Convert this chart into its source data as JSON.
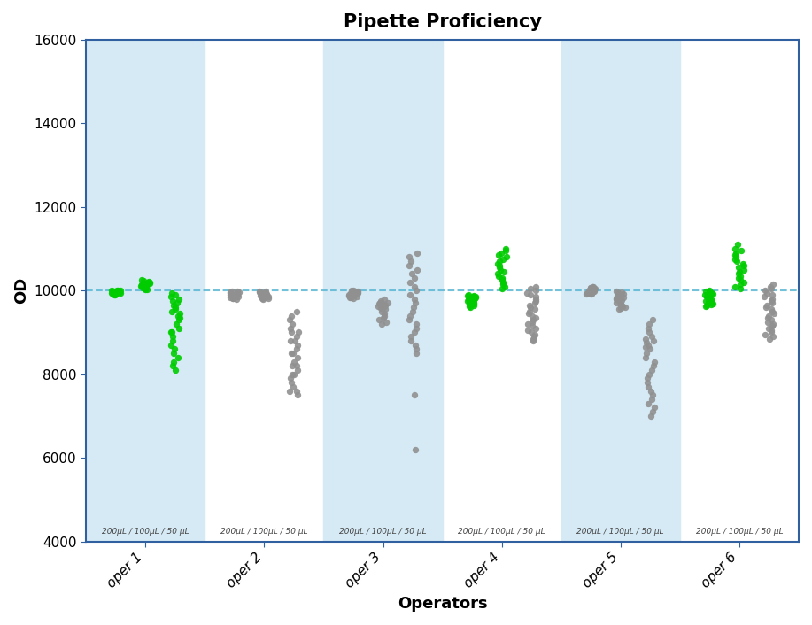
{
  "title": "Pipette Proficiency",
  "xlabel": "Operators",
  "ylabel": "OD",
  "ylim": [
    4000,
    16000
  ],
  "yticks": [
    4000,
    6000,
    8000,
    10000,
    12000,
    14000,
    16000
  ],
  "dashed_line_y": 10000,
  "operators": [
    "oper 1",
    "oper 2",
    "oper 3",
    "oper 4",
    "oper 5",
    "oper 6"
  ],
  "sublabel": "200μL / 100μL / 50 μL",
  "background_color": "#ffffff",
  "band_color": "#d6eaf5",
  "green_color": "#00cc00",
  "gray_color": "#909090",
  "dashed_color": "#5bb8d4",
  "title_fontsize": 15,
  "axis_label_fontsize": 13,
  "tick_fontsize": 11,
  "spine_color": "#3060a0",
  "operator_data": {
    "oper 1": {
      "col1_color": "green",
      "col2_color": "green",
      "col3_color": "green",
      "col1": [
        9990,
        9995,
        10000,
        10005,
        9985,
        9975,
        10010,
        9970,
        9980,
        9960,
        9950,
        9940,
        9965,
        9955,
        9945,
        9935,
        9925,
        9915,
        9905,
        9895
      ],
      "col2": [
        10100,
        10120,
        10080,
        10050,
        10150,
        10200,
        10060,
        10170,
        10090,
        10110,
        10130,
        10140,
        10160,
        10180,
        10190,
        10210,
        10230,
        10250,
        10020,
        10030
      ],
      "col3": [
        9950,
        9900,
        9850,
        9800,
        9750,
        9700,
        9650,
        9600,
        9550,
        9500,
        9450,
        9400,
        9350,
        9300,
        9200,
        9100,
        9000,
        8900,
        8700,
        8500,
        8600,
        8800,
        8400,
        8300,
        8200,
        8100,
        9000
      ]
    },
    "oper 2": {
      "col1_color": "gray",
      "col2_color": "gray",
      "col3_color": "gray",
      "col1": [
        9950,
        9960,
        9970,
        9980,
        9990,
        9940,
        9930,
        9920,
        9910,
        9900,
        9890,
        9880,
        9870,
        9860,
        9850,
        9840,
        9830,
        9820,
        9810,
        9800
      ],
      "col2": [
        9850,
        9860,
        9870,
        9880,
        9890,
        9900,
        9910,
        9920,
        9930,
        9940,
        9950,
        9960,
        9970,
        9980,
        9990,
        9840,
        9830,
        9820,
        9810,
        9800
      ],
      "col3": [
        9500,
        9400,
        9300,
        9200,
        9100,
        9000,
        8900,
        8800,
        8700,
        8600,
        8500,
        8400,
        8300,
        8200,
        8100,
        8000,
        7900,
        7800,
        7700,
        7600,
        7500,
        7600,
        8000,
        8500,
        9000,
        8800,
        8200
      ]
    },
    "oper 3": {
      "col1_color": "gray",
      "col2_color": "gray",
      "col3_color": "gray",
      "col1": [
        9990,
        10000,
        10010,
        9980,
        9970,
        9960,
        9950,
        9940,
        9930,
        9920,
        9910,
        9900,
        9890,
        9880,
        9870,
        9860,
        9850,
        9840,
        9830,
        9820
      ],
      "col2": [
        9700,
        9750,
        9800,
        9650,
        9600,
        9550,
        9500,
        9450,
        9400,
        9350,
        9300,
        9250,
        9200,
        9700,
        9680,
        9660,
        9640,
        9620,
        9600,
        9580
      ],
      "col3": [
        10100,
        10200,
        10300,
        10400,
        10500,
        10600,
        10700,
        10800,
        10900,
        10000,
        9900,
        9800,
        9700,
        9600,
        9500,
        9400,
        9300,
        9200,
        9100,
        9000,
        8900,
        8800,
        8700,
        8600,
        8500,
        6200,
        7500
      ]
    },
    "oper 4": {
      "col1_color": "green",
      "col2_color": "green",
      "col3_color": "gray",
      "col1": [
        9800,
        9820,
        9840,
        9860,
        9880,
        9900,
        9780,
        9760,
        9740,
        9720,
        9700,
        9680,
        9660,
        9640,
        9620,
        9600,
        9820,
        9840,
        9860,
        9880
      ],
      "col2": [
        10300,
        10400,
        10500,
        10600,
        10700,
        10800,
        10900,
        11000,
        10200,
        10100,
        10050,
        10150,
        10250,
        10350,
        10450,
        10550,
        10650,
        10750,
        10850,
        10950
      ],
      "col3": [
        9800,
        9850,
        9900,
        9950,
        10000,
        10050,
        10100,
        9750,
        9700,
        9650,
        9600,
        9550,
        9500,
        9450,
        9400,
        9350,
        9300,
        9250,
        9200,
        9150,
        9100,
        9050,
        9000,
        8950,
        8900,
        8850,
        8800
      ]
    },
    "oper 5": {
      "col1_color": "gray",
      "col2_color": "gray",
      "col3_color": "gray",
      "col1": [
        10000,
        10010,
        10020,
        10030,
        10040,
        10050,
        10060,
        10070,
        10080,
        10090,
        10100,
        9990,
        9980,
        9970,
        9960,
        9950,
        9940,
        9930,
        9920,
        9910
      ],
      "col2": [
        9750,
        9780,
        9800,
        9820,
        9840,
        9860,
        9880,
        9900,
        9920,
        9940,
        9960,
        9980,
        9700,
        9680,
        9660,
        9640,
        9620,
        9600,
        9580,
        9560
      ],
      "col3": [
        8800,
        8700,
        8600,
        8500,
        8400,
        8300,
        8200,
        8100,
        8000,
        7900,
        7800,
        7700,
        7600,
        7500,
        7400,
        7300,
        7200,
        7100,
        7000,
        8900,
        9000,
        9100,
        9200,
        9300,
        8850,
        8750,
        8650
      ]
    },
    "oper 6": {
      "col1_color": "green",
      "col2_color": "green",
      "col3_color": "gray",
      "col1": [
        9900,
        9920,
        9940,
        9960,
        9980,
        10000,
        9880,
        9860,
        9840,
        9820,
        9800,
        9780,
        9760,
        9740,
        9720,
        9700,
        9680,
        9660,
        9640,
        9620
      ],
      "col2": [
        10050,
        10100,
        10150,
        10200,
        10250,
        10300,
        10350,
        10400,
        10450,
        10500,
        10550,
        10600,
        10650,
        10700,
        10750,
        10800,
        10850,
        10900,
        10950,
        11000,
        11100
      ],
      "col3": [
        9800,
        9850,
        9900,
        9950,
        10000,
        10050,
        10100,
        10150,
        9750,
        9700,
        9650,
        9600,
        9550,
        9500,
        9450,
        9400,
        9350,
        9300,
        9250,
        9200,
        9150,
        9100,
        9050,
        9000,
        8950,
        8900,
        8850
      ]
    }
  }
}
